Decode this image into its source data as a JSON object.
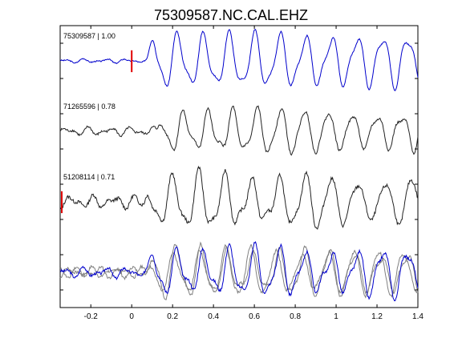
{
  "chart_data": {
    "type": "line",
    "title": "75309587.NC.CAL.EHZ",
    "xlabel": "",
    "ylabel": "",
    "xlim": [
      -0.35,
      1.4
    ],
    "xticks": [
      -0.2,
      0,
      0.2,
      0.4,
      0.6,
      0.8,
      1,
      1.2,
      1.4
    ],
    "xtick_labels": [
      "-0.2",
      "0",
      "0.2",
      "0.4",
      "0.6",
      "0.8",
      "1",
      "1.2",
      "1.4"
    ],
    "ylim": [
      0,
      4
    ],
    "y_ticks_unlabeled": 8,
    "grid": false,
    "colors": {
      "reference": "#0000cc",
      "other": "#222222",
      "overlay_gray": "#808080",
      "pick": "#e00000"
    },
    "traces": [
      {
        "name": "75309587 | 1.00",
        "label": "75309587 | 1.00",
        "baseline": 3.5,
        "color": "blue",
        "pick_time": 0.0,
        "onset": 0.07,
        "period": 0.125,
        "amplitude": 0.36,
        "noise": 0.02
      },
      {
        "name": "71265596 | 0.78",
        "label": "71265596 | 0.78",
        "baseline": 2.5,
        "color": "black",
        "onset": 0.12,
        "period": 0.118,
        "amplitude": 0.28,
        "noise": 0.04
      },
      {
        "name": "51208114 | 0.71",
        "label": "51208114 | 0.71",
        "baseline": 1.5,
        "color": "black",
        "pick_time": -0.35,
        "onset": 0.06,
        "period": 0.13,
        "amplitude": 0.33,
        "noise": 0.06
      },
      {
        "name": "stack",
        "label": "",
        "baseline": 0.5,
        "color": "overlay",
        "onset": 0.07,
        "period": 0.125,
        "amplitude": 0.3,
        "noise": 0.05
      }
    ]
  }
}
